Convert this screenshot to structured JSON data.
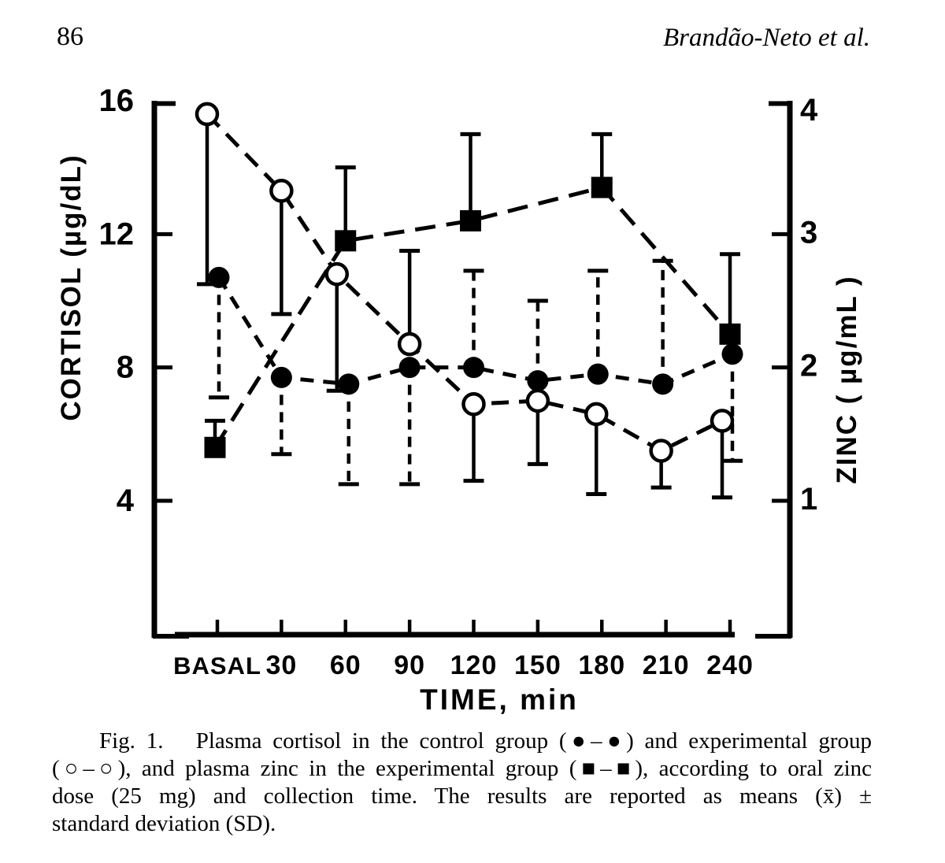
{
  "page": {
    "page_number": "86",
    "running_head": "Brandão-Neto et al."
  },
  "figure": {
    "caption_lines": [
      "Fig. 1.   Plasma cortisol in the control group (●–●) and experimental group",
      "(○–○), and plasma zinc in the experimental group (■–■), according to oral zinc",
      "dose (25 mg) and collection time. The results are reported as means (x̄) ±",
      "standard deviation (SD)."
    ]
  },
  "chart_data": {
    "type": "line",
    "x_categories": [
      "BASAL",
      "30",
      "60",
      "90",
      "120",
      "150",
      "180",
      "210",
      "240"
    ],
    "xlabel": "TIME, min",
    "grid": false,
    "legend": "described in caption",
    "axes": {
      "left": {
        "label": "CORTISOL (µg/dL)",
        "ticks": [
          16,
          12,
          8,
          4
        ],
        "range": [
          0,
          16.2
        ]
      },
      "right": {
        "label": "ZINC ( µg/mL )",
        "ticks": [
          4,
          3,
          2,
          1
        ],
        "range": [
          0,
          4.05
        ]
      }
    },
    "series": [
      {
        "name": "Plasma cortisol — control group",
        "marker": "filled-circle",
        "axis": "left",
        "line": "dashed",
        "error_bars": "dashed",
        "points": [
          {
            "x": "BASAL",
            "y": 10.7,
            "err_end": 7.1
          },
          {
            "x": "30",
            "y": 7.7,
            "err_end": 5.4
          },
          {
            "x": "60",
            "y": 7.5,
            "err_end": 4.5
          },
          {
            "x": "90",
            "y": 8.0,
            "err_end": 4.5
          },
          {
            "x": "120",
            "y": 8.0,
            "err_end": 10.9
          },
          {
            "x": "150",
            "y": 7.6,
            "err_end": 10.0
          },
          {
            "x": "180",
            "y": 7.8,
            "err_end": 10.9
          },
          {
            "x": "210",
            "y": 7.5,
            "err_end": 11.2
          },
          {
            "x": "240",
            "y": 8.4,
            "err_end": 5.2
          }
        ]
      },
      {
        "name": "Plasma cortisol — experimental group",
        "marker": "open-circle",
        "axis": "left",
        "line": "dashed",
        "error_bars": "solid",
        "points": [
          {
            "x": "BASAL",
            "y": 15.6,
            "err_end": 10.5
          },
          {
            "x": "30",
            "y": 13.3,
            "err_end": 9.6
          },
          {
            "x": "60",
            "y": 10.8,
            "err_end": 7.3
          },
          {
            "x": "90",
            "y": 8.7,
            "err_end": 11.5
          },
          {
            "x": "120",
            "y": 6.9,
            "err_end": 4.6
          },
          {
            "x": "150",
            "y": 7.0,
            "err_end": 5.1
          },
          {
            "x": "180",
            "y": 6.6,
            "err_end": 4.2
          },
          {
            "x": "210",
            "y": 5.5,
            "err_end": 4.4
          },
          {
            "x": "240",
            "y": 6.4,
            "err_end": 4.1
          }
        ]
      },
      {
        "name": "Plasma zinc — experimental group",
        "marker": "filled-square",
        "axis": "right",
        "line": "dashed",
        "error_bars": "solid",
        "points": [
          {
            "x": "BASAL",
            "y": 1.4,
            "err_end": 1.6
          },
          {
            "x": "60",
            "y": 2.95,
            "err_end": 3.5
          },
          {
            "x": "120",
            "y": 3.1,
            "err_end": 3.75
          },
          {
            "x": "180",
            "y": 3.35,
            "err_end": 3.75
          },
          {
            "x": "240",
            "y": 2.25,
            "err_end": 2.85
          }
        ]
      }
    ]
  }
}
